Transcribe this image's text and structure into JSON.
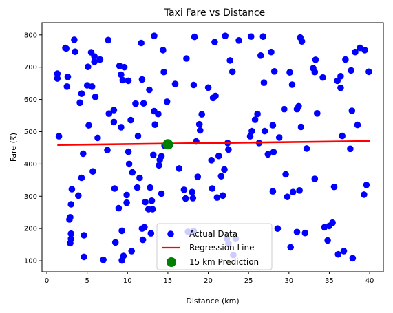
{
  "chart_data": {
    "type": "scatter",
    "title": "Taxi Fare vs Distance",
    "xlabel": "Distance (km)",
    "ylabel": "Fare (₹)",
    "xlim": [
      -0.6,
      41.7
    ],
    "ylim": [
      66,
      838
    ],
    "xticks": [
      0,
      5,
      10,
      15,
      20,
      25,
      30,
      35,
      40
    ],
    "yticks": [
      100,
      200,
      300,
      400,
      500,
      600,
      700,
      800
    ],
    "grid": false,
    "legend_position": "lower-center",
    "series": [
      {
        "name": "Actual Data",
        "kind": "scatter",
        "color": "#0000ff",
        "points": [
          [
            1.3,
            680
          ],
          [
            1.3,
            665
          ],
          [
            1.5,
            486
          ],
          [
            2.3,
            760
          ],
          [
            2.4,
            758
          ],
          [
            2.5,
            640
          ],
          [
            2.6,
            670
          ],
          [
            2.8,
            228
          ],
          [
            2.9,
            235
          ],
          [
            2.9,
            155
          ],
          [
            3.0,
            168
          ],
          [
            3.0,
            184
          ],
          [
            3.0,
            275
          ],
          [
            3.1,
            322
          ],
          [
            3.4,
            785
          ],
          [
            3.5,
            748
          ],
          [
            3.9,
            302
          ],
          [
            4.1,
            590
          ],
          [
            4.3,
            618
          ],
          [
            4.3,
            357
          ],
          [
            4.5,
            432
          ],
          [
            4.6,
            179
          ],
          [
            4.6,
            112
          ],
          [
            5.0,
            644
          ],
          [
            5.1,
            701
          ],
          [
            5.2,
            520
          ],
          [
            5.5,
            746
          ],
          [
            5.6,
            640
          ],
          [
            5.7,
            377
          ],
          [
            5.9,
            733
          ],
          [
            5.9,
            717
          ],
          [
            6.0,
            608
          ],
          [
            6.3,
            481
          ],
          [
            6.6,
            724
          ],
          [
            7.0,
            103
          ],
          [
            7.5,
            443
          ],
          [
            7.6,
            784
          ],
          [
            7.7,
            556
          ],
          [
            8.3,
            567
          ],
          [
            8.3,
            530
          ],
          [
            8.4,
            324
          ],
          [
            8.5,
            157
          ],
          [
            8.9,
            263
          ],
          [
            9.0,
            704
          ],
          [
            9.2,
            677
          ],
          [
            9.2,
            514
          ],
          [
            9.3,
            193
          ],
          [
            9.3,
            101
          ],
          [
            9.4,
            660
          ],
          [
            9.5,
            115
          ],
          [
            9.6,
            700
          ],
          [
            9.9,
            304
          ],
          [
            9.9,
            280
          ],
          [
            10.1,
            658
          ],
          [
            10.1,
            438
          ],
          [
            10.2,
            400
          ],
          [
            10.4,
            536
          ],
          [
            10.5,
            130
          ],
          [
            10.6,
            374
          ],
          [
            11.0,
            587
          ],
          [
            11.2,
            327
          ],
          [
            11.3,
            487
          ],
          [
            11.5,
            357
          ],
          [
            11.7,
            775
          ],
          [
            11.8,
            662
          ],
          [
            11.8,
            200
          ],
          [
            11.9,
            165
          ],
          [
            12.0,
            588
          ],
          [
            12.1,
            204
          ],
          [
            12.2,
            282
          ],
          [
            12.6,
            260
          ],
          [
            12.7,
            630
          ],
          [
            12.8,
            327
          ],
          [
            12.9,
            185
          ],
          [
            13.0,
            286
          ],
          [
            13.1,
            260
          ],
          [
            13.2,
            428
          ],
          [
            13.3,
            797
          ],
          [
            13.3,
            564
          ],
          [
            13.4,
            522
          ],
          [
            13.8,
            555
          ],
          [
            13.9,
            396
          ],
          [
            14.0,
            413
          ],
          [
            14.2,
            424
          ],
          [
            14.2,
            308
          ],
          [
            14.4,
            753
          ],
          [
            14.5,
            685
          ],
          [
            14.6,
            457
          ],
          [
            14.9,
            593
          ],
          [
            15.2,
            457
          ],
          [
            15.9,
            648
          ],
          [
            16.4,
            386
          ],
          [
            17.0,
            320
          ],
          [
            17.2,
            293
          ],
          [
            17.3,
            727
          ],
          [
            17.5,
            190
          ],
          [
            18.0,
            313
          ],
          [
            18.1,
            294
          ],
          [
            18.2,
            645
          ],
          [
            18.2,
            192
          ],
          [
            18.3,
            794
          ],
          [
            18.5,
            470
          ],
          [
            18.7,
            360
          ],
          [
            18.9,
            523
          ],
          [
            19.0,
            504
          ],
          [
            19.2,
            554
          ],
          [
            20.0,
            637
          ],
          [
            20.4,
            412
          ],
          [
            20.5,
            324
          ],
          [
            20.6,
            605
          ],
          [
            20.8,
            778
          ],
          [
            20.9,
            611
          ],
          [
            21.1,
            296
          ],
          [
            21.3,
            425
          ],
          [
            21.6,
            362
          ],
          [
            21.8,
            302
          ],
          [
            22.0,
            383
          ],
          [
            22.1,
            797
          ],
          [
            22.3,
            168
          ],
          [
            22.4,
            465
          ],
          [
            22.5,
            445
          ],
          [
            22.5,
            153
          ],
          [
            22.7,
            721
          ],
          [
            23.0,
            686
          ],
          [
            23.1,
            118
          ],
          [
            23.4,
            168
          ],
          [
            23.8,
            783
          ],
          [
            25.2,
            486
          ],
          [
            25.3,
            795
          ],
          [
            25.4,
            502
          ],
          [
            25.8,
            537
          ],
          [
            26.1,
            555
          ],
          [
            26.3,
            465
          ],
          [
            26.5,
            736
          ],
          [
            26.8,
            795
          ],
          [
            26.9,
            652
          ],
          [
            27.0,
            502
          ],
          [
            27.4,
            430
          ],
          [
            27.8,
            747
          ],
          [
            28.0,
            520
          ],
          [
            28.0,
            315
          ],
          [
            28.1,
            437
          ],
          [
            28.2,
            687
          ],
          [
            28.6,
            200
          ],
          [
            28.8,
            482
          ],
          [
            29.4,
            570
          ],
          [
            29.6,
            368
          ],
          [
            29.8,
            298
          ],
          [
            30.1,
            684
          ],
          [
            30.2,
            142
          ],
          [
            30.4,
            646
          ],
          [
            30.5,
            313
          ],
          [
            31.0,
            570
          ],
          [
            31.0,
            189
          ],
          [
            31.2,
            579
          ],
          [
            31.3,
            318
          ],
          [
            31.4,
            792
          ],
          [
            31.5,
            515
          ],
          [
            31.6,
            780
          ],
          [
            32.0,
            186
          ],
          [
            32.2,
            448
          ],
          [
            33.0,
            697
          ],
          [
            33.2,
            685
          ],
          [
            33.2,
            354
          ],
          [
            33.3,
            723
          ],
          [
            33.5,
            557
          ],
          [
            34.2,
            668
          ],
          [
            34.4,
            204
          ],
          [
            34.8,
            163
          ],
          [
            35.0,
            208
          ],
          [
            35.4,
            218
          ],
          [
            35.6,
            329
          ],
          [
            36.0,
            658
          ],
          [
            36.1,
            120
          ],
          [
            36.4,
            636
          ],
          [
            36.4,
            672
          ],
          [
            36.6,
            487
          ],
          [
            36.8,
            130
          ],
          [
            37.0,
            724
          ],
          [
            37.6,
            447
          ],
          [
            37.7,
            690
          ],
          [
            37.8,
            565
          ],
          [
            37.9,
            108
          ],
          [
            38.2,
            747
          ],
          [
            38.5,
            521
          ],
          [
            38.8,
            760
          ],
          [
            39.3,
            305
          ],
          [
            39.4,
            753
          ],
          [
            39.6,
            335
          ],
          [
            39.9,
            686
          ]
        ]
      },
      {
        "name": "Regression Line",
        "kind": "line",
        "color": "#ff0000",
        "points": [
          [
            1.3,
            459
          ],
          [
            40.0,
            471
          ]
        ]
      },
      {
        "name": "15 km Prediction",
        "kind": "scatter",
        "color": "#008000",
        "points": [
          [
            15,
            461
          ]
        ]
      }
    ]
  }
}
